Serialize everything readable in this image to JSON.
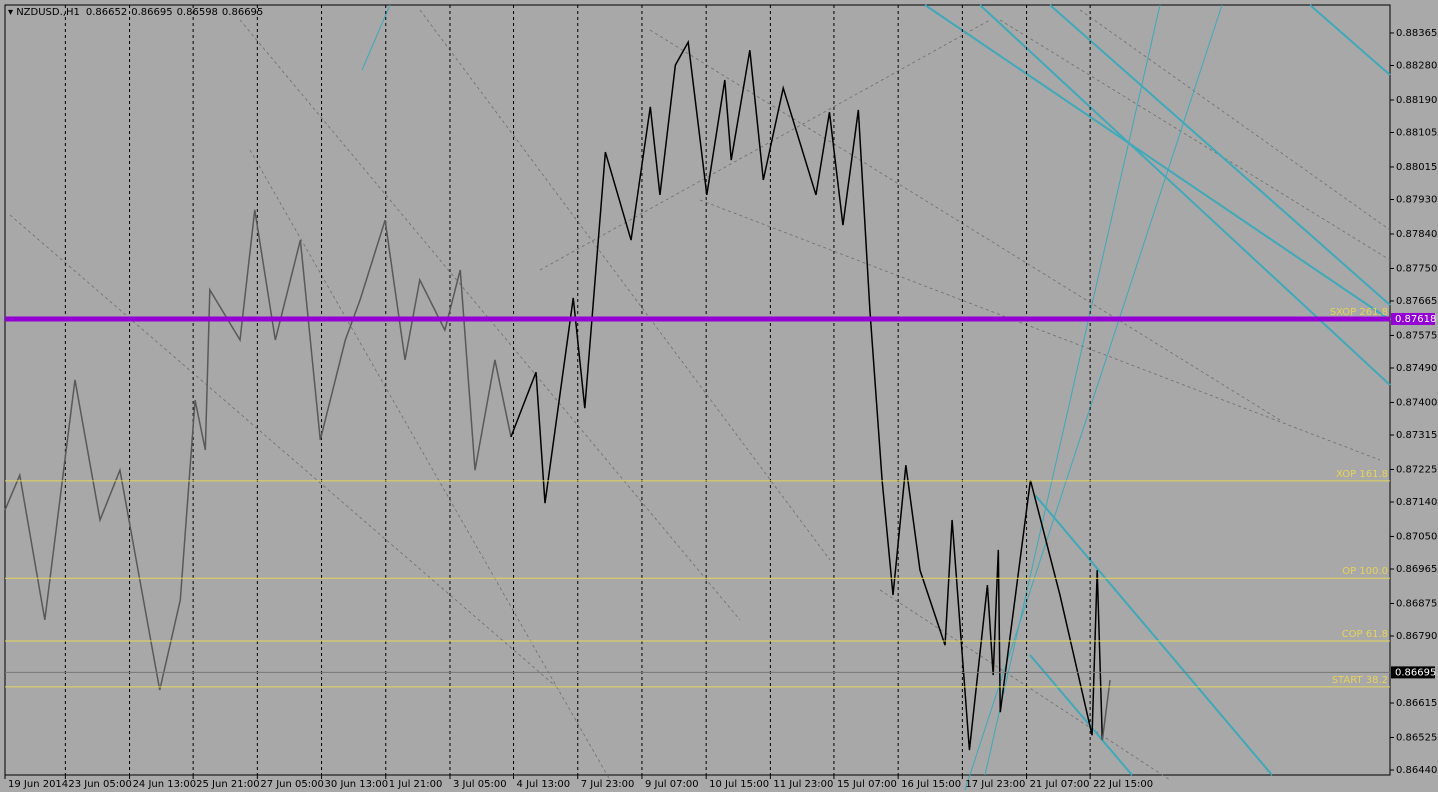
{
  "chart_data": {
    "type": "line",
    "symbol": "NZDUSD.,H1",
    "ohlc": [
      0.86652,
      0.86695,
      0.86598,
      0.86695
    ],
    "xlim": [
      -0.38,
      21.19
    ],
    "ylim": [
      0.86427,
      0.88438
    ],
    "xticks": [
      {
        "value": -0.38,
        "label": "19 Jun 2014"
      },
      {
        "value": 0.56,
        "label": "23 Jun 05:00"
      },
      {
        "value": 1.56,
        "label": "24 Jun 13:00"
      },
      {
        "value": 2.55,
        "label": "25 Jun 21:00"
      },
      {
        "value": 3.55,
        "label": "27 Jun 05:00"
      },
      {
        "value": 4.55,
        "label": "30 Jun 13:00"
      },
      {
        "value": 5.55,
        "label": "1 Jul 21:00"
      },
      {
        "value": 6.55,
        "label": "3 Jul 05:00"
      },
      {
        "value": 7.54,
        "label": "4 Jul 13:00"
      },
      {
        "value": 8.54,
        "label": "7 Jul 23:00"
      },
      {
        "value": 9.54,
        "label": "9 Jul 07:00"
      },
      {
        "value": 10.54,
        "label": "10 Jul 15:00"
      },
      {
        "value": 11.54,
        "label": "11 Jul 23:00"
      },
      {
        "value": 12.53,
        "label": "15 Jul 07:00"
      },
      {
        "value": 13.53,
        "label": "16 Jul 15:00"
      },
      {
        "value": 14.53,
        "label": "17 Jul 23:00"
      },
      {
        "value": 15.53,
        "label": "21 Jul 07:00"
      },
      {
        "value": 16.52,
        "label": "22 Jul 15:00"
      }
    ],
    "yticks": [
      0.88365,
      {
        "value": 0.8828,
        "label": "0.88280"
      },
      {
        "value": 0.8819,
        "label": "0.88190"
      },
      0.88105,
      0.88015,
      {
        "value": 0.8793,
        "label": "0.87930"
      },
      {
        "value": 0.8784,
        "label": "0.87840"
      },
      {
        "value": 0.8775,
        "label": "0.87750"
      },
      0.87665,
      0.87575,
      {
        "value": 0.8749,
        "label": "0.87490"
      },
      {
        "value": 0.874,
        "label": "0.87400"
      },
      0.87315,
      0.87225,
      {
        "value": 0.8714,
        "label": "0.87140"
      },
      {
        "value": 0.8705,
        "label": "0.87050"
      },
      0.86965,
      0.86875,
      {
        "value": 0.8679,
        "label": "0.86790"
      },
      0.86615,
      0.86525,
      {
        "value": 0.8644,
        "label": "0.86440"
      }
    ],
    "grid": true,
    "series": [
      {
        "color": "#595959",
        "x": [
          -0.38,
          -0.15,
          0.24,
          0.71,
          1.1,
          1.41,
          2.03,
          2.35,
          2.58,
          2.74,
          2.81,
          3.28,
          3.51,
          3.83,
          4.22,
          4.53,
          4.92,
          5.15,
          5.54,
          5.85,
          6.08,
          6.47,
          6.71,
          6.94,
          7.25,
          7.5
        ],
        "values": [
          0.87119,
          0.8721,
          0.86832,
          0.87459,
          0.87093,
          0.87223,
          0.86649,
          0.86884,
          0.87406,
          0.87276,
          0.87694,
          0.87563,
          0.87903,
          0.87563,
          0.87824,
          0.87302,
          0.87563,
          0.87668,
          0.87876,
          0.87511,
          0.8772,
          0.87589,
          0.87746,
          0.87223,
          0.87511,
          0.8731
        ]
      },
      {
        "color": "#000000",
        "x": [
          7.5,
          7.89,
          8.03,
          8.47,
          8.65,
          8.97,
          9.37,
          9.67,
          9.82,
          10.06,
          10.26,
          10.55,
          10.83,
          10.93,
          11.22,
          11.43,
          11.74,
          12.25,
          12.46,
          12.67,
          12.91,
          13.09,
          13.28,
          13.45,
          13.65,
          13.87,
          14.26,
          14.37,
          14.64,
          14.92,
          15.01,
          15.09,
          15.12,
          15.59,
          16.05,
          16.55,
          16.63,
          16.71
        ],
        "values": [
          0.8731,
          0.87479,
          0.87137,
          0.87673,
          0.87385,
          0.88054,
          0.87824,
          0.88172,
          0.87942,
          0.88281,
          0.88341,
          0.87942,
          0.88242,
          0.88033,
          0.8832,
          0.87981,
          0.88221,
          0.87942,
          0.88158,
          0.87863,
          0.88164,
          0.87641,
          0.87197,
          0.86897,
          0.87236,
          0.86962,
          0.86766,
          0.87093,
          0.86492,
          0.86923,
          0.86688,
          0.87015,
          0.86591,
          0.87197,
          0.86897,
          0.86531,
          0.86962,
          0.86518
        ]
      },
      {
        "color": "#595959",
        "x": [
          16.71,
          16.83
        ],
        "values": [
          0.86518,
          0.86675
        ]
      }
    ],
    "levels": [
      {
        "name": "SXOP 261.8",
        "value": 0.87618,
        "color": "#9400d3",
        "value_label": "0.87618"
      },
      {
        "name": "XOP 161.8",
        "value": 0.87195,
        "color": "#e6d35a"
      },
      {
        "name": "OP 100.0",
        "value": 0.86941,
        "color": "#e6d35a"
      },
      {
        "name": "COP 61.8",
        "value": 0.86777,
        "color": "#e6d35a"
      },
      {
        "name": "START 38.2",
        "value": 0.86657,
        "color": "#e6d35a"
      }
    ],
    "current_price": 0.86695
  }
}
